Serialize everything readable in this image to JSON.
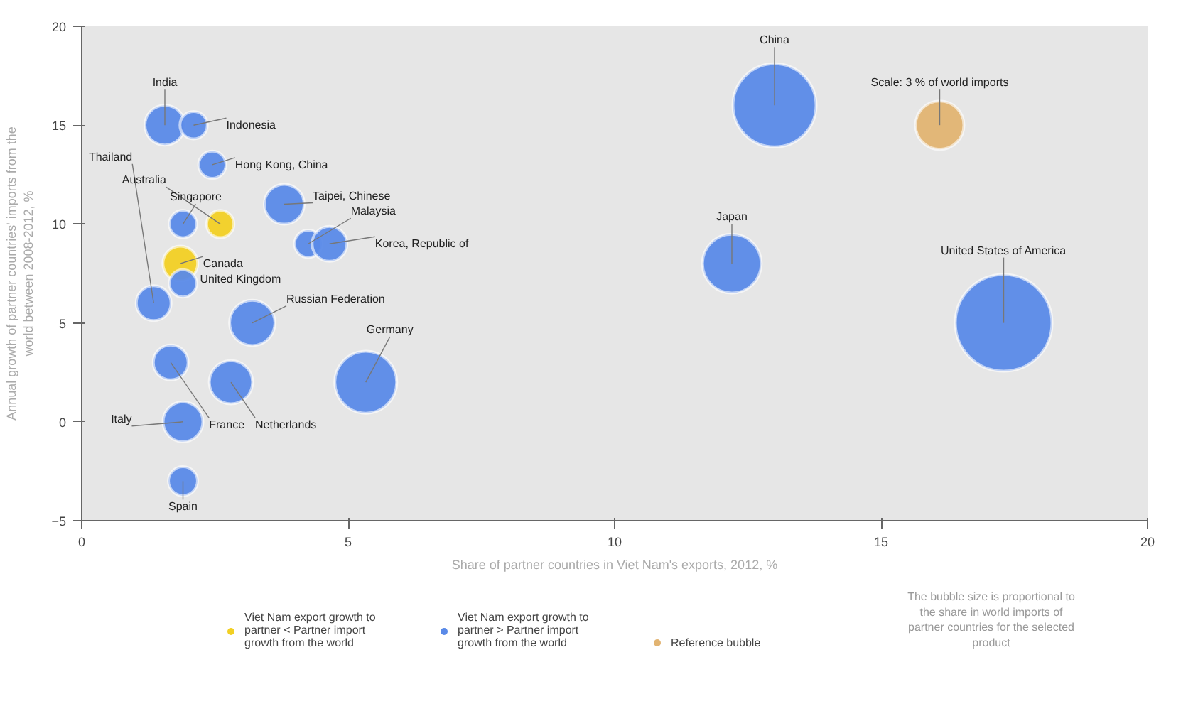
{
  "chart_data": {
    "type": "bubble",
    "xlabel": "Share of partner countries in Viet Nam's exports, 2012, %",
    "ylabel": "Annual growth of partner countries' imports from the world between 2008-2012, %",
    "xlim": [
      0,
      20
    ],
    "xticks": [
      0,
      5,
      10,
      15,
      20
    ],
    "ylim": [
      -5,
      20
    ],
    "yticks": [
      -5,
      0,
      5,
      10,
      15,
      20
    ],
    "legend": "bottom",
    "series": [
      {
        "name": "Viet Nam export growth to partner < Partner import growth from the world",
        "color": "#f2d024",
        "x": [
          2.6,
          1.85
        ],
        "values": [
          10,
          8
        ],
        "sizes": [
          0.08,
          0.13
        ]
      },
      {
        "name": "Viet Nam export growth to partner > Partner import growth from the world",
        "color": "#5a8ae8",
        "x": [
          1.56,
          2.1,
          2.45,
          3.8,
          1.9,
          4.25,
          4.65,
          1.9,
          1.35,
          3.2,
          5.33,
          1.67,
          2.8,
          1.9,
          1.9,
          13.0,
          12.2,
          17.3
        ],
        "values": [
          15,
          15,
          13,
          11,
          10,
          9,
          9,
          7,
          6,
          5,
          2,
          3,
          2,
          0,
          -3,
          16,
          8,
          5
        ],
        "sizes": [
          0.17,
          0.08,
          0.08,
          0.17,
          0.08,
          0.08,
          0.13,
          0.08,
          0.13,
          0.22,
          0.41,
          0.13,
          0.2,
          0.17,
          0.09,
          0.74,
          0.37,
          1
        ]
      },
      {
        "name": "Reference bubble",
        "color": "#e2b472",
        "x": [
          16.1
        ],
        "values": [
          15
        ],
        "sizes": [
          0.25
        ]
      }
    ],
    "annotations": [
      {
        "text": "India",
        "x": 1.56,
        "y": 15
      },
      {
        "text": "Indonesia",
        "x": 2.1,
        "y": 15
      },
      {
        "text": "Hong Kong, China",
        "x": 2.45,
        "y": 13
      },
      {
        "text": "Taipei, Chinese",
        "x": 3.8,
        "y": 11
      },
      {
        "text": "Singapore",
        "x": 1.9,
        "y": 10
      },
      {
        "text": "Australia",
        "x": 2.6,
        "y": 10
      },
      {
        "text": "Malaysia",
        "x": 4.25,
        "y": 9
      },
      {
        "text": "Korea, Republic of",
        "x": 4.65,
        "y": 9
      },
      {
        "text": "Canada",
        "x": 1.85,
        "y": 8
      },
      {
        "text": "United Kingdom",
        "x": 1.9,
        "y": 7
      },
      {
        "text": "Thailand",
        "x": 1.35,
        "y": 6
      },
      {
        "text": "Russian Federation",
        "x": 3.2,
        "y": 5
      },
      {
        "text": "Germany",
        "x": 5.33,
        "y": 2
      },
      {
        "text": "France",
        "x": 1.67,
        "y": 3
      },
      {
        "text": "Netherlands",
        "x": 2.8,
        "y": 2
      },
      {
        "text": "Italy",
        "x": 1.9,
        "y": 0
      },
      {
        "text": "Spain",
        "x": 1.9,
        "y": -3
      },
      {
        "text": "China",
        "x": 13.0,
        "y": 16
      },
      {
        "text": "Japan",
        "x": 12.2,
        "y": 8
      },
      {
        "text": "United States of America",
        "x": 17.3,
        "y": 5
      },
      {
        "text": "Scale: 3 % of world imports",
        "x": 16.1,
        "y": 15
      },
      "The bubble size is proportional to the share in world imports of partner countries for the selected product"
    ]
  }
}
